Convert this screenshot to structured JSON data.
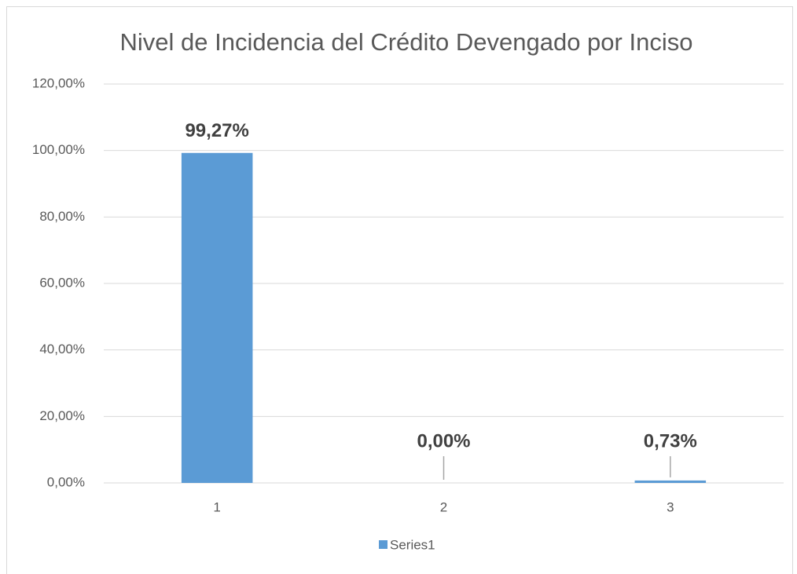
{
  "chart_data": {
    "type": "bar",
    "title": "Nivel de Incidencia del Crédito Devengado por Inciso",
    "categories": [
      "1",
      "2",
      "3"
    ],
    "series": [
      {
        "name": "Series1",
        "color": "#5b9bd5",
        "values": [
          99.27,
          0,
          0.73
        ],
        "value_labels": [
          "99,27%",
          "0,00%",
          "0,73%"
        ]
      }
    ],
    "ylim": [
      0,
      120
    ],
    "yticks": [
      {
        "value": 0,
        "label": "0,00%"
      },
      {
        "value": 20,
        "label": "20,00%"
      },
      {
        "value": 40,
        "label": "40,00%"
      },
      {
        "value": 60,
        "label": "60,00%"
      },
      {
        "value": 80,
        "label": "80,00%"
      },
      {
        "value": 100,
        "label": "100,00%"
      },
      {
        "value": 120,
        "label": "120,00%"
      }
    ],
    "grid": true,
    "legend": "bottom"
  }
}
